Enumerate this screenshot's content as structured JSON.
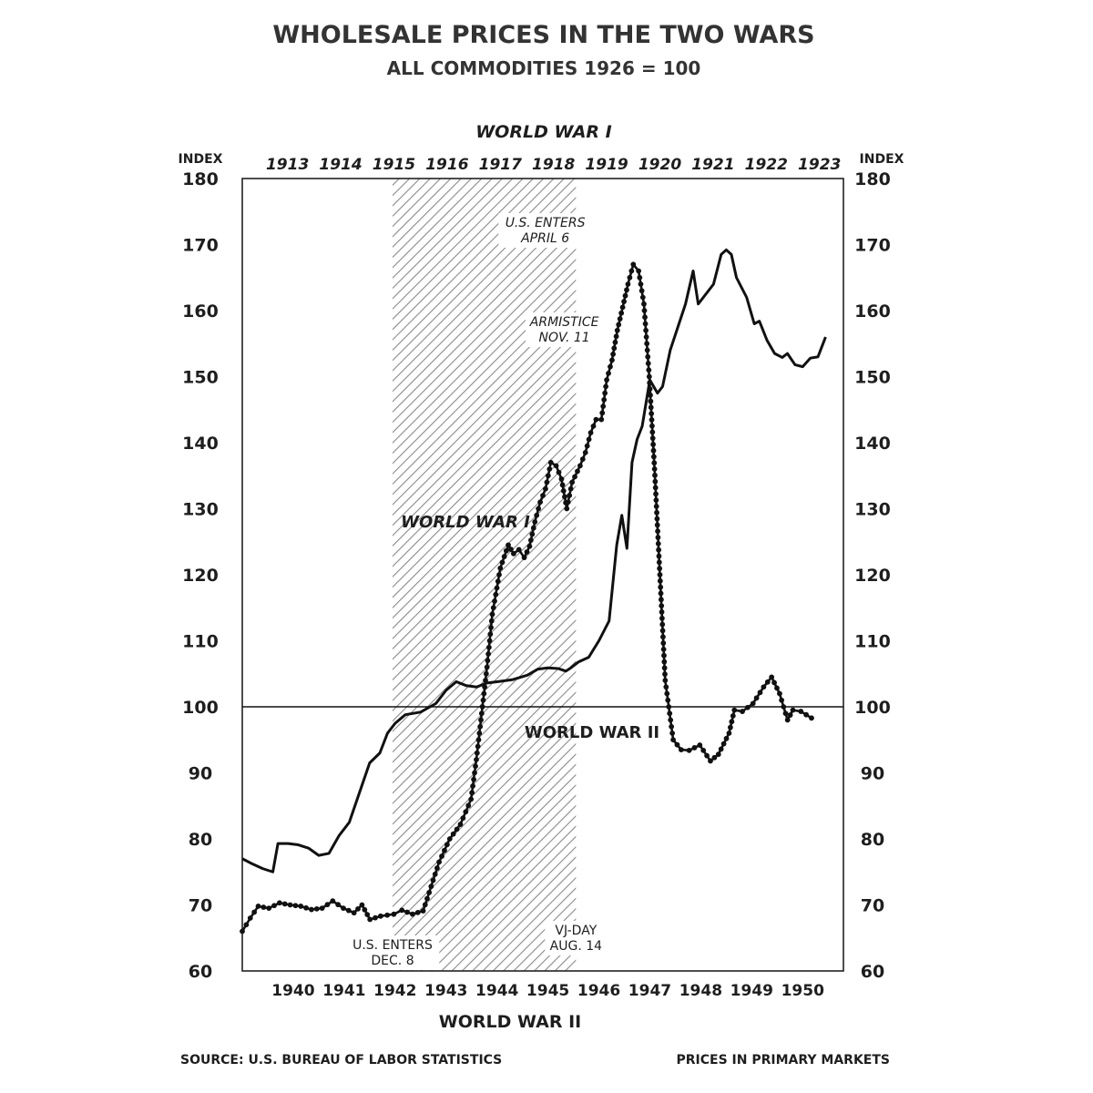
{
  "title": "WHOLESALE PRICES IN THE TWO WARS",
  "subtitle": "ALL COMMODITIES 1926 = 100",
  "source": "SOURCE: U.S. BUREAU OF LABOR STATISTICS",
  "footnote": "PRICES IN PRIMARY MARKETS",
  "chart_data": {
    "type": "line",
    "title": "WHOLESALE PRICES IN THE TWO WARS",
    "subtitle": "ALL COMMODITIES 1926 = 100",
    "ylabel_left": "INDEX",
    "ylabel_right": "INDEX",
    "ylim": [
      60,
      180
    ],
    "yticks": [
      60,
      70,
      80,
      90,
      100,
      110,
      120,
      130,
      140,
      150,
      160,
      170,
      180
    ],
    "reference_line": 100,
    "grid": false,
    "top_axis": {
      "title": "WORLD WAR I",
      "ticks": [
        "1913",
        "1914",
        "1915",
        "1916",
        "1917",
        "1918",
        "1919",
        "1920",
        "1921",
        "1922",
        "1923"
      ],
      "range": [
        1912.6,
        1923.9
      ]
    },
    "bottom_axis": {
      "title": "WORLD WAR II",
      "ticks": [
        "1940",
        "1941",
        "1942",
        "1943",
        "1944",
        "1945",
        "1946",
        "1947",
        "1948",
        "1949",
        "1950"
      ],
      "range": [
        1939.1,
        1950.9
      ]
    },
    "series": [
      {
        "name": "WORLD WAR I",
        "axis": "top",
        "style": "dotted",
        "points": [
          [
            1912.6,
            66
          ],
          [
            1912.75,
            68
          ],
          [
            1912.9,
            69.8
          ],
          [
            1913.1,
            69.5
          ],
          [
            1913.3,
            70.3
          ],
          [
            1913.5,
            70
          ],
          [
            1913.7,
            69.8
          ],
          [
            1913.9,
            69.3
          ],
          [
            1914.1,
            69.5
          ],
          [
            1914.3,
            70.6
          ],
          [
            1914.5,
            69.5
          ],
          [
            1914.7,
            68.8
          ],
          [
            1914.85,
            70
          ],
          [
            1915.0,
            67.8
          ],
          [
            1915.2,
            68.3
          ],
          [
            1915.45,
            68.6
          ],
          [
            1915.6,
            69.2
          ],
          [
            1915.8,
            68.6
          ],
          [
            1916.0,
            69.1
          ],
          [
            1916.3,
            76.5
          ],
          [
            1916.5,
            80
          ],
          [
            1916.7,
            82.2
          ],
          [
            1916.9,
            86
          ],
          [
            1917.0,
            92
          ],
          [
            1917.1,
            99
          ],
          [
            1917.2,
            106
          ],
          [
            1917.3,
            114
          ],
          [
            1917.45,
            121
          ],
          [
            1917.6,
            124.5
          ],
          [
            1917.7,
            123.2
          ],
          [
            1917.8,
            123.8
          ],
          [
            1917.9,
            122.6
          ],
          [
            1918.0,
            124.3
          ],
          [
            1918.1,
            128
          ],
          [
            1918.2,
            131
          ],
          [
            1918.3,
            133
          ],
          [
            1918.4,
            137
          ],
          [
            1918.5,
            136.5
          ],
          [
            1918.6,
            134.5
          ],
          [
            1918.7,
            130
          ],
          [
            1918.8,
            134
          ],
          [
            1918.95,
            136.5
          ],
          [
            1919.05,
            138.5
          ],
          [
            1919.15,
            141.5
          ],
          [
            1919.25,
            143.5
          ],
          [
            1919.35,
            143.5
          ],
          [
            1919.45,
            149.5
          ],
          [
            1919.55,
            152.5
          ],
          [
            1919.65,
            157
          ],
          [
            1919.75,
            160.5
          ],
          [
            1919.85,
            164
          ],
          [
            1919.95,
            167
          ],
          [
            1920.05,
            166
          ],
          [
            1920.15,
            161
          ],
          [
            1920.25,
            150
          ],
          [
            1920.35,
            136
          ],
          [
            1920.45,
            120
          ],
          [
            1920.55,
            104
          ],
          [
            1920.7,
            95
          ],
          [
            1920.85,
            93.5
          ],
          [
            1921.0,
            93.4
          ],
          [
            1921.2,
            94.2
          ],
          [
            1921.4,
            91.8
          ],
          [
            1921.55,
            92.8
          ],
          [
            1921.75,
            96
          ],
          [
            1921.85,
            99.5
          ],
          [
            1922.0,
            99.3
          ],
          [
            1922.2,
            100.5
          ],
          [
            1922.4,
            103
          ],
          [
            1922.55,
            104.5
          ],
          [
            1922.7,
            102
          ],
          [
            1922.85,
            98
          ],
          [
            1922.95,
            99.5
          ],
          [
            1923.1,
            99.3
          ],
          [
            1923.3,
            98.3
          ]
        ]
      },
      {
        "name": "WORLD WAR II",
        "axis": "bottom",
        "style": "solid",
        "points": [
          [
            1939.1,
            77
          ],
          [
            1939.3,
            76.2
          ],
          [
            1939.5,
            75.5
          ],
          [
            1939.7,
            75
          ],
          [
            1939.8,
            79.3
          ],
          [
            1940.0,
            79.3
          ],
          [
            1940.2,
            79.1
          ],
          [
            1940.4,
            78.6
          ],
          [
            1940.6,
            77.5
          ],
          [
            1940.8,
            77.8
          ],
          [
            1941.0,
            80.5
          ],
          [
            1941.2,
            82.5
          ],
          [
            1941.4,
            87
          ],
          [
            1941.6,
            91.5
          ],
          [
            1941.8,
            93
          ],
          [
            1941.95,
            96
          ],
          [
            1942.1,
            97.5
          ],
          [
            1942.3,
            98.8
          ],
          [
            1942.6,
            99.2
          ],
          [
            1942.9,
            100.5
          ],
          [
            1943.1,
            102.5
          ],
          [
            1943.3,
            103.8
          ],
          [
            1943.5,
            103.2
          ],
          [
            1943.7,
            103
          ],
          [
            1943.9,
            103.6
          ],
          [
            1944.1,
            103.8
          ],
          [
            1944.4,
            104.1
          ],
          [
            1944.7,
            104.8
          ],
          [
            1944.9,
            105.7
          ],
          [
            1945.1,
            105.9
          ],
          [
            1945.3,
            105.8
          ],
          [
            1945.45,
            105.4
          ],
          [
            1945.55,
            105.9
          ],
          [
            1945.7,
            106.8
          ],
          [
            1945.9,
            107.5
          ],
          [
            1946.1,
            110
          ],
          [
            1946.3,
            113
          ],
          [
            1946.45,
            124.5
          ],
          [
            1946.55,
            129
          ],
          [
            1946.65,
            124
          ],
          [
            1946.75,
            137
          ],
          [
            1946.85,
            140.5
          ],
          [
            1946.95,
            142.5
          ],
          [
            1947.1,
            149.5
          ],
          [
            1947.25,
            147.5
          ],
          [
            1947.35,
            148.5
          ],
          [
            1947.5,
            154
          ],
          [
            1947.65,
            157.5
          ],
          [
            1947.8,
            161
          ],
          [
            1947.95,
            166
          ],
          [
            1948.05,
            161
          ],
          [
            1948.2,
            162.5
          ],
          [
            1948.35,
            164
          ],
          [
            1948.5,
            168.5
          ],
          [
            1948.6,
            169.2
          ],
          [
            1948.7,
            168.5
          ],
          [
            1948.8,
            165
          ],
          [
            1949.0,
            162
          ],
          [
            1949.15,
            158
          ],
          [
            1949.25,
            158.4
          ],
          [
            1949.4,
            155.5
          ],
          [
            1949.55,
            153.5
          ],
          [
            1949.7,
            152.9
          ],
          [
            1949.8,
            153.5
          ],
          [
            1949.95,
            151.8
          ],
          [
            1950.1,
            151.5
          ],
          [
            1950.25,
            152.8
          ],
          [
            1950.4,
            153
          ],
          [
            1950.55,
            156
          ]
        ]
      }
    ],
    "shaded_periods": [
      {
        "axis": "bottom",
        "range": [
          1942.05,
          1945.65
        ],
        "label_start": "U.S. ENTERS\nDEC. 8",
        "label_end": "VJ-DAY\nAUG. 14"
      },
      {
        "axis": "top",
        "range": [
          1917.25,
          1918.86
        ],
        "label_start": "U.S. ENTERS\nAPRIL 6",
        "label_end": "ARMISTICE\nNOV. 11"
      }
    ],
    "annotations": [
      "WORLD WAR I",
      "WORLD WAR II"
    ]
  }
}
